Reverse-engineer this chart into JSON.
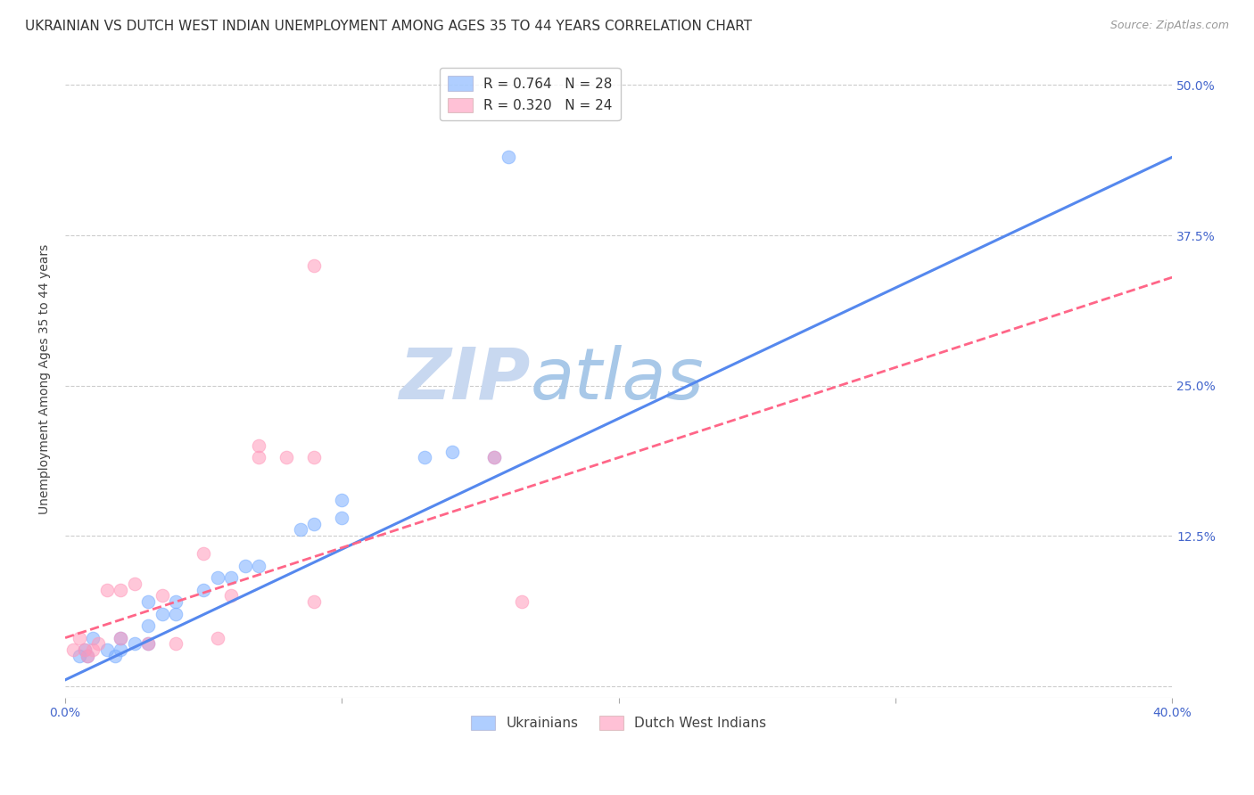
{
  "title": "UKRAINIAN VS DUTCH WEST INDIAN UNEMPLOYMENT AMONG AGES 35 TO 44 YEARS CORRELATION CHART",
  "source": "Source: ZipAtlas.com",
  "ylabel": "Unemployment Among Ages 35 to 44 years",
  "xlim": [
    0.0,
    0.4
  ],
  "ylim": [
    -0.01,
    0.52
  ],
  "xticks": [
    0.0,
    0.1,
    0.2,
    0.3,
    0.4
  ],
  "xtick_labels": [
    "0.0%",
    "",
    "",
    "",
    "40.0%"
  ],
  "yticks_right": [
    0.0,
    0.125,
    0.25,
    0.375,
    0.5
  ],
  "ytick_labels_right": [
    "",
    "12.5%",
    "25.0%",
    "37.5%",
    "50.0%"
  ],
  "legend_line1": "R = 0.764   N = 28",
  "legend_line2": "R = 0.320   N = 24",
  "ukr_scatter_x": [
    0.005,
    0.007,
    0.008,
    0.01,
    0.015,
    0.018,
    0.02,
    0.02,
    0.025,
    0.03,
    0.03,
    0.03,
    0.035,
    0.04,
    0.04,
    0.05,
    0.055,
    0.06,
    0.065,
    0.07,
    0.085,
    0.09,
    0.1,
    0.1,
    0.13,
    0.14,
    0.155,
    0.16
  ],
  "ukr_scatter_y": [
    0.025,
    0.03,
    0.025,
    0.04,
    0.03,
    0.025,
    0.03,
    0.04,
    0.035,
    0.035,
    0.05,
    0.07,
    0.06,
    0.06,
    0.07,
    0.08,
    0.09,
    0.09,
    0.1,
    0.1,
    0.13,
    0.135,
    0.14,
    0.155,
    0.19,
    0.195,
    0.19,
    0.44
  ],
  "dwi_scatter_x": [
    0.003,
    0.005,
    0.007,
    0.008,
    0.01,
    0.012,
    0.015,
    0.02,
    0.02,
    0.025,
    0.03,
    0.035,
    0.04,
    0.05,
    0.055,
    0.06,
    0.07,
    0.07,
    0.08,
    0.09,
    0.09,
    0.09,
    0.155,
    0.165
  ],
  "dwi_scatter_y": [
    0.03,
    0.04,
    0.03,
    0.025,
    0.03,
    0.035,
    0.08,
    0.04,
    0.08,
    0.085,
    0.035,
    0.075,
    0.035,
    0.11,
    0.04,
    0.075,
    0.19,
    0.2,
    0.19,
    0.07,
    0.19,
    0.35,
    0.19,
    0.07
  ],
  "ukr_line_x": [
    0.0,
    0.4
  ],
  "ukr_line_y": [
    0.005,
    0.44
  ],
  "dwi_line_x": [
    0.0,
    0.4
  ],
  "dwi_line_y": [
    0.04,
    0.34
  ],
  "scatter_size": 110,
  "ukr_color": "#7aaeff",
  "dwi_color": "#ff99bb",
  "ukr_line_color": "#5588ee",
  "dwi_line_color": "#ff6688",
  "background_color": "#ffffff",
  "grid_color": "#cccccc",
  "watermark_zip": "ZIP",
  "watermark_atlas": "atlas",
  "watermark_color_zip": "#c8d8f0",
  "watermark_color_atlas": "#a8c8e8",
  "title_fontsize": 11,
  "axis_label_fontsize": 10,
  "tick_label_fontsize": 10,
  "legend_fontsize": 11
}
